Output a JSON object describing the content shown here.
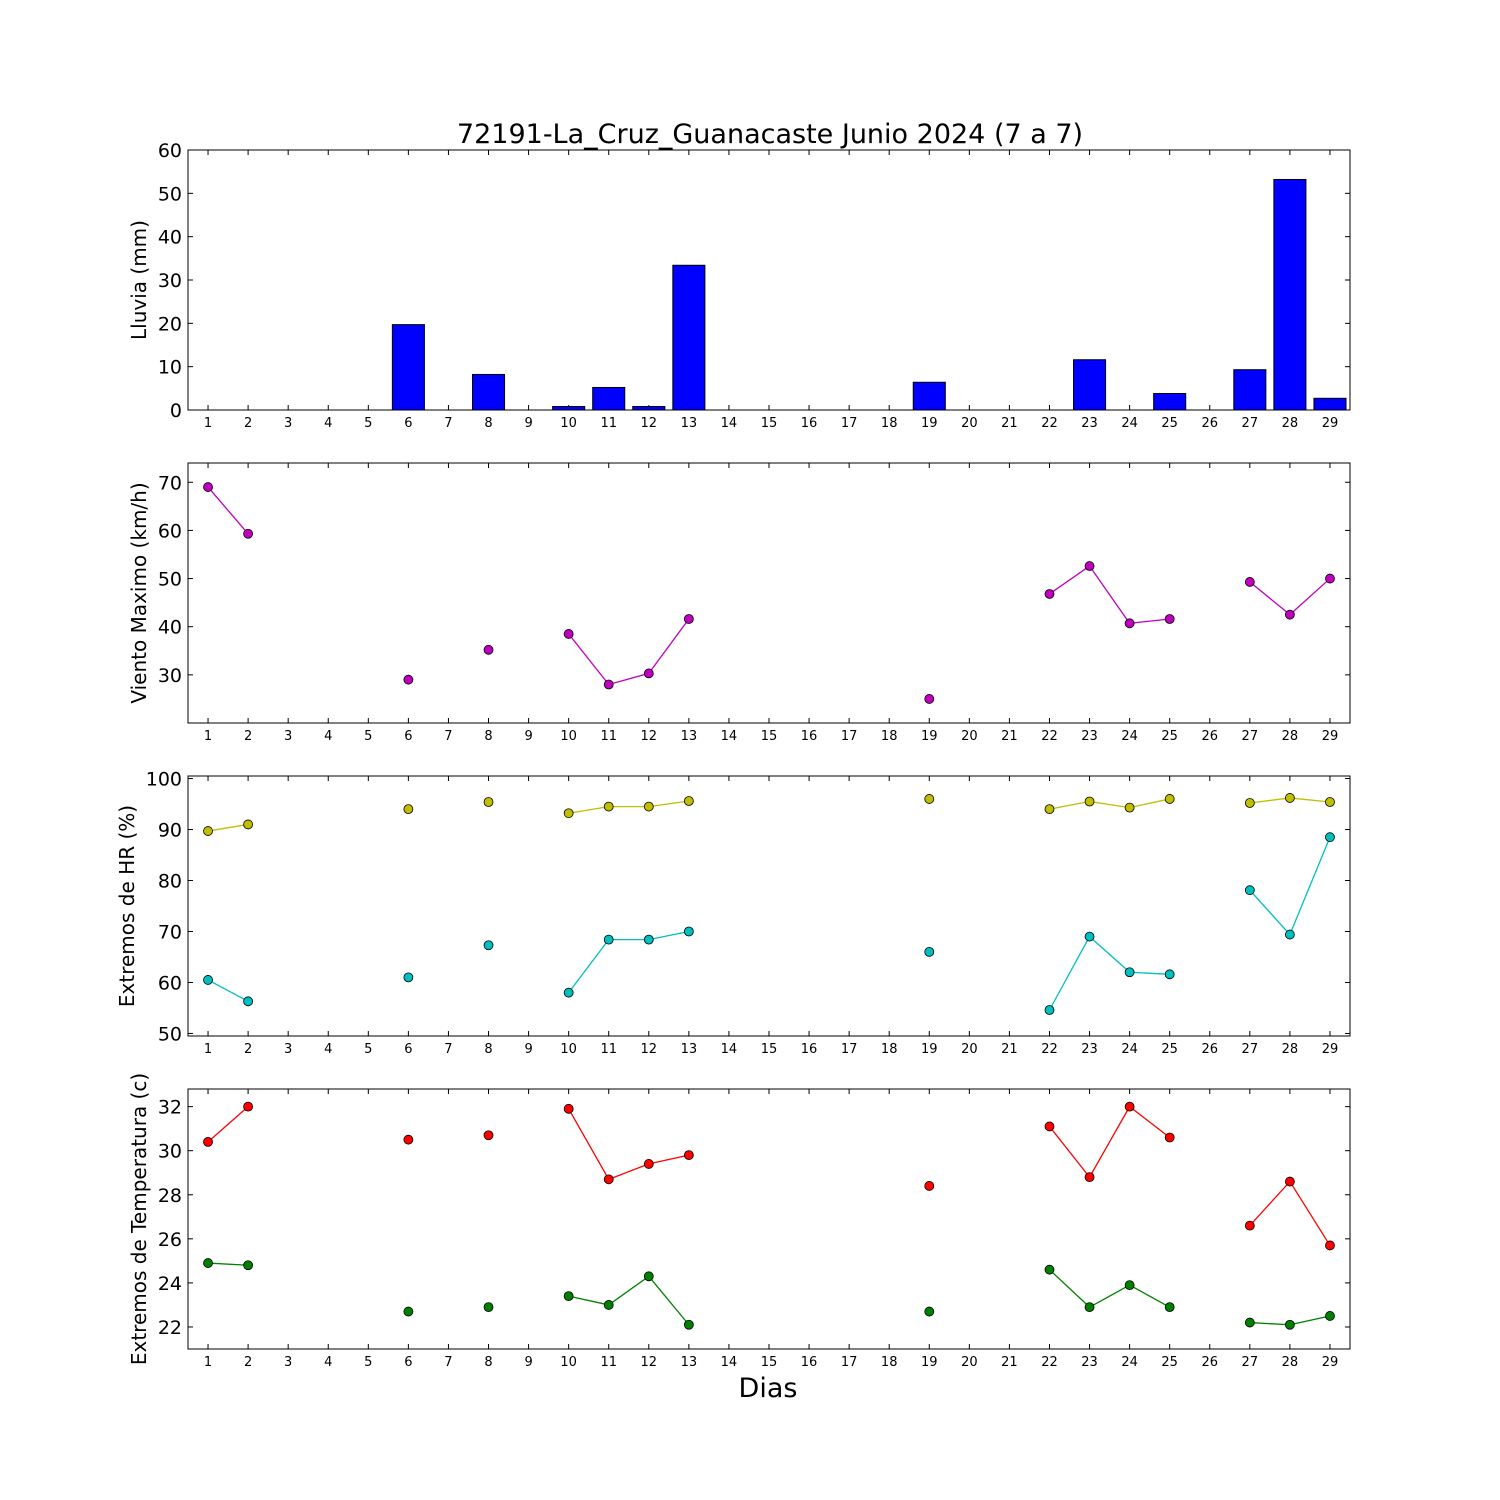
{
  "title": "72191-La_Cruz_Guanacaste Junio 2024  (7 a 7)",
  "xlabel": "Dias",
  "days": [
    1,
    2,
    3,
    4,
    5,
    6,
    7,
    8,
    9,
    10,
    11,
    12,
    13,
    14,
    15,
    16,
    17,
    18,
    19,
    20,
    21,
    22,
    23,
    24,
    25,
    26,
    27,
    28,
    29
  ],
  "colors": {
    "rain": "#0000ff",
    "wind": "#bf00bf",
    "hr_max": "#bfbf00",
    "hr_min": "#00bfbf",
    "t_max": "#ff0000",
    "t_min": "#008000"
  },
  "chart_data": [
    {
      "type": "bar",
      "ylabel": "Lluvia (mm)",
      "ylim": [
        0,
        60
      ],
      "yticks": [
        0,
        10,
        20,
        30,
        40,
        50,
        60
      ],
      "x": [
        1,
        2,
        3,
        4,
        5,
        6,
        7,
        8,
        9,
        10,
        11,
        12,
        13,
        14,
        15,
        16,
        17,
        18,
        19,
        20,
        21,
        22,
        23,
        24,
        25,
        26,
        27,
        28,
        29
      ],
      "values": [
        0,
        0,
        0,
        0,
        0,
        19.7,
        0,
        8.2,
        0,
        0.8,
        5.2,
        0.8,
        33.4,
        0,
        0,
        0,
        0,
        0,
        6.4,
        0,
        0,
        0,
        11.6,
        0,
        3.8,
        0,
        9.3,
        53.2,
        2.7
      ]
    },
    {
      "type": "line",
      "ylabel": "Viento Maximo (km/h)",
      "ylim": [
        20,
        74
      ],
      "yticks": [
        30,
        40,
        50,
        60,
        70
      ],
      "x": [
        1,
        2,
        3,
        4,
        5,
        6,
        7,
        8,
        9,
        10,
        11,
        12,
        13,
        14,
        15,
        16,
        17,
        18,
        19,
        20,
        21,
        22,
        23,
        24,
        25,
        26,
        27,
        28,
        29
      ],
      "series": [
        {
          "values": [
            69,
            59.3,
            null,
            null,
            null,
            29,
            null,
            35.2,
            null,
            38.5,
            28,
            30.3,
            41.6,
            null,
            null,
            null,
            null,
            null,
            25,
            null,
            null,
            46.8,
            52.6,
            40.7,
            41.6,
            null,
            49.3,
            42.5,
            50
          ]
        }
      ]
    },
    {
      "type": "line",
      "ylabel": "Extremos de HR (%)",
      "ylim": [
        49.5,
        100.5
      ],
      "yticks": [
        50,
        60,
        70,
        80,
        90,
        100
      ],
      "x": [
        1,
        2,
        3,
        4,
        5,
        6,
        7,
        8,
        9,
        10,
        11,
        12,
        13,
        14,
        15,
        16,
        17,
        18,
        19,
        20,
        21,
        22,
        23,
        24,
        25,
        26,
        27,
        28,
        29
      ],
      "series": [
        {
          "values": [
            89.7,
            91,
            null,
            null,
            null,
            94,
            null,
            95.4,
            null,
            93.2,
            94.5,
            94.5,
            95.6,
            null,
            null,
            null,
            null,
            null,
            96,
            null,
            null,
            94,
            95.5,
            94.3,
            96,
            null,
            95.2,
            96.2,
            95.4
          ]
        },
        {
          "values": [
            60.5,
            56.3,
            null,
            null,
            null,
            61,
            null,
            67.3,
            null,
            58,
            68.4,
            68.4,
            70,
            null,
            null,
            null,
            null,
            null,
            66,
            null,
            null,
            54.6,
            69,
            62,
            61.6,
            null,
            78.1,
            69.4,
            88.5
          ]
        }
      ]
    },
    {
      "type": "line",
      "ylabel": "Extremos de Temperatura (c)",
      "ylim": [
        21,
        32.8
      ],
      "yticks": [
        22,
        24,
        26,
        28,
        30,
        32
      ],
      "x": [
        1,
        2,
        3,
        4,
        5,
        6,
        7,
        8,
        9,
        10,
        11,
        12,
        13,
        14,
        15,
        16,
        17,
        18,
        19,
        20,
        21,
        22,
        23,
        24,
        25,
        26,
        27,
        28,
        29
      ],
      "series": [
        {
          "values": [
            30.4,
            32,
            null,
            null,
            null,
            30.5,
            null,
            30.7,
            null,
            31.9,
            28.7,
            29.4,
            29.8,
            null,
            null,
            null,
            null,
            null,
            28.4,
            null,
            null,
            31.1,
            28.8,
            32,
            30.6,
            null,
            26.6,
            28.6,
            25.7
          ]
        },
        {
          "values": [
            24.9,
            24.8,
            null,
            null,
            null,
            22.7,
            null,
            22.9,
            null,
            23.4,
            23,
            24.3,
            22.1,
            null,
            null,
            null,
            null,
            null,
            22.7,
            null,
            null,
            24.6,
            22.9,
            23.9,
            22.9,
            null,
            22.2,
            22.1,
            22.5
          ]
        }
      ]
    }
  ]
}
